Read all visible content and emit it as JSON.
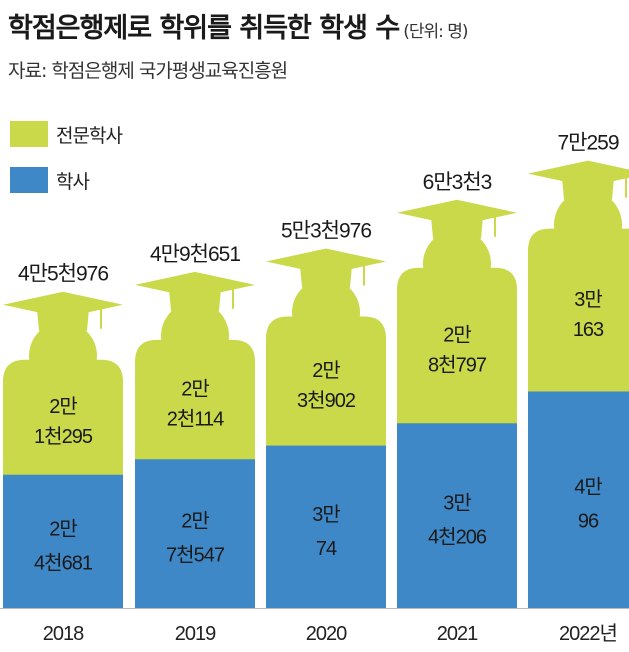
{
  "header": {
    "title": "학점은행제로 학위를 취득한 학생 수",
    "unit": "(단위: 명)",
    "source": "자료: 학점은행제 국가평생교육진흥원"
  },
  "legend": [
    {
      "label": "전문학사",
      "color": "#c9d94a"
    },
    {
      "label": "학사",
      "color": "#3f88c8"
    }
  ],
  "chart_data": {
    "type": "bar",
    "stacked": true,
    "categories": [
      "2018",
      "2019",
      "2020",
      "2021",
      "2022년"
    ],
    "series": [
      {
        "name": "학사",
        "color": "#3f88c8",
        "values": [
          24681,
          27547,
          30074,
          34206,
          40096
        ],
        "labels": [
          [
            "2만",
            "4천681"
          ],
          [
            "2만",
            "7천547"
          ],
          [
            "3만",
            "74"
          ],
          [
            "3만",
            "4천206"
          ],
          [
            "4만",
            "96"
          ]
        ]
      },
      {
        "name": "전문학사",
        "color": "#c9d94a",
        "values": [
          21295,
          22114,
          23902,
          28797,
          30163
        ],
        "labels": [
          [
            "2만",
            "1천295"
          ],
          [
            "2만",
            "2천114"
          ],
          [
            "2만",
            "3천902"
          ],
          [
            "2만",
            "8천797"
          ],
          [
            "3만",
            "163"
          ]
        ]
      }
    ],
    "totals": [
      45976,
      49651,
      53976,
      63003,
      70259
    ],
    "total_labels": [
      "4만5천976",
      "4만9천651",
      "5만3천976",
      "6만3천3",
      "7만259"
    ]
  }
}
